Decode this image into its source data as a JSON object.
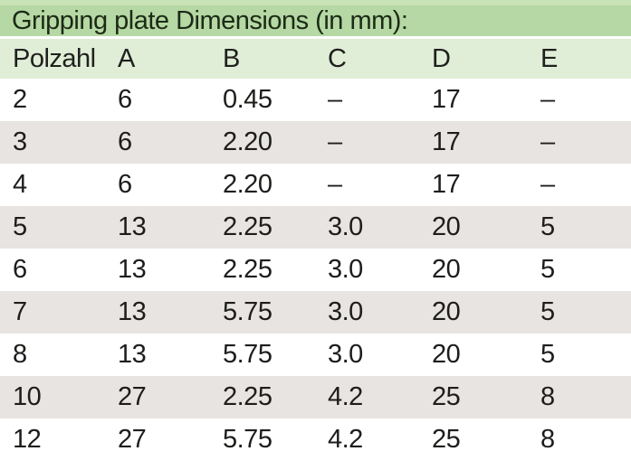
{
  "title": "Gripping plate Dimensions (in mm):",
  "table": {
    "columns": [
      "Polzahl",
      "A",
      "B",
      "C",
      "D",
      "E"
    ],
    "rows": [
      [
        "2",
        "6",
        "0.45",
        "–",
        "17",
        "–"
      ],
      [
        "3",
        "6",
        "2.20",
        "–",
        "17",
        "–"
      ],
      [
        "4",
        "6",
        "2.20",
        "–",
        "17",
        "–"
      ],
      [
        "5",
        "13",
        "2.25",
        "3.0",
        "20",
        "5"
      ],
      [
        "6",
        "13",
        "2.25",
        "3.0",
        "20",
        "5"
      ],
      [
        "7",
        "13",
        "5.75",
        "3.0",
        "20",
        "5"
      ],
      [
        "8",
        "13",
        "5.75",
        "3.0",
        "20",
        "5"
      ],
      [
        "10",
        "27",
        "2.25",
        "4.2",
        "25",
        "8"
      ],
      [
        "12",
        "27",
        "5.75",
        "4.2",
        "25",
        "8"
      ]
    ]
  },
  "colors": {
    "title_band": "#b6d8a4",
    "title_band_highlight": "#c9e2b6",
    "header_row_bg": "#e0eed7",
    "alt_row_bg": "#e7e4e1",
    "row_bg": "#ffffff",
    "text": "#1d1d1b",
    "title_text": "#1c2a16"
  }
}
